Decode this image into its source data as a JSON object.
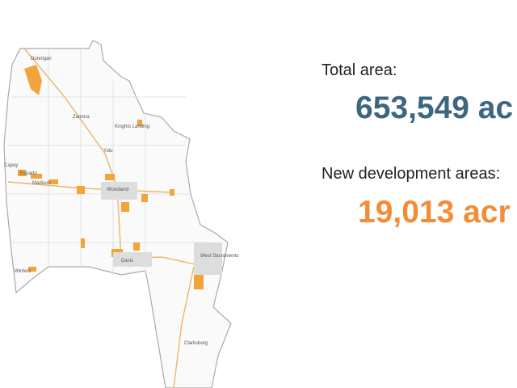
{
  "summary": {
    "total_label": "Total area:",
    "total_value": "653,549 ac",
    "new_label": "New development areas:",
    "new_value": "19,013 acr"
  },
  "map": {
    "places": [
      "Dunnigan",
      "Zamora",
      "Knights Landing",
      "Yolo",
      "Capay",
      "Esparto",
      "Madison",
      "Woodland",
      "Davis",
      "Winters",
      "West Sacramento",
      "Clarksburg"
    ]
  }
}
